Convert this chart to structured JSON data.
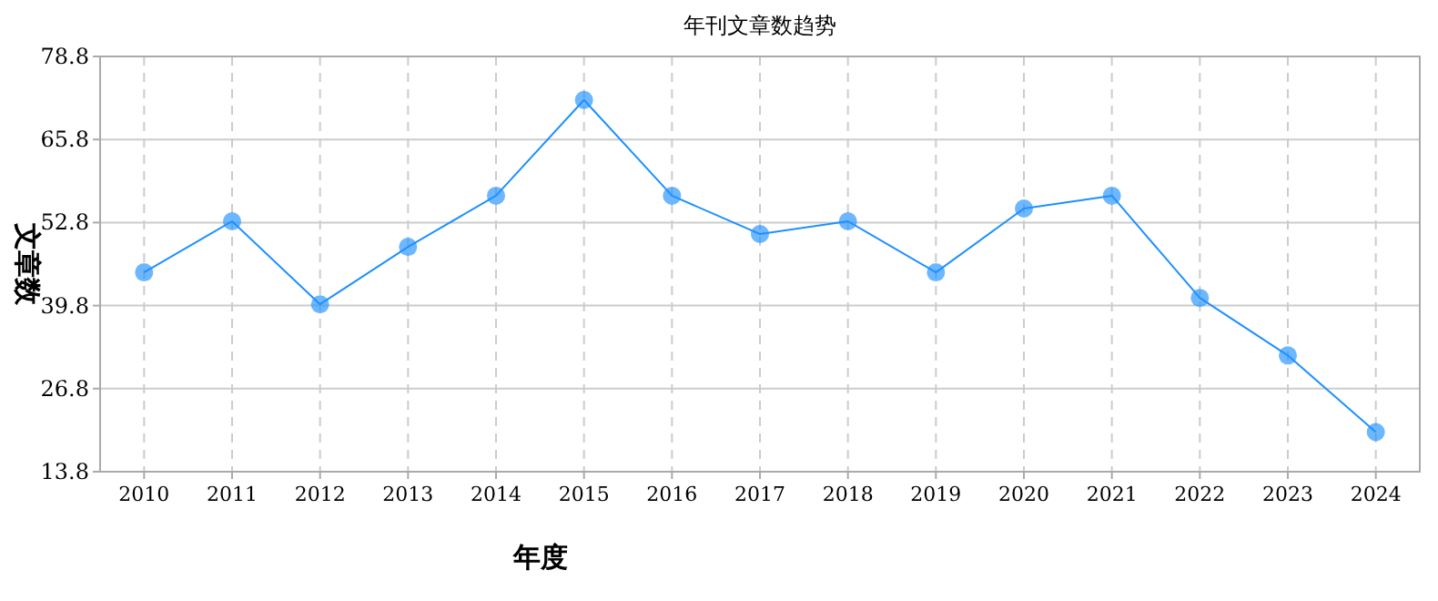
{
  "chart_data": {
    "type": "line",
    "title": "年刊文章数趋势",
    "xlabel": "年度",
    "ylabel": "文章数",
    "categories": [
      "2010",
      "2011",
      "2012",
      "2013",
      "2014",
      "2015",
      "2016",
      "2017",
      "2018",
      "2019",
      "2020",
      "2021",
      "2022",
      "2023",
      "2024"
    ],
    "series": [
      {
        "color": "#1e90ff",
        "values": [
          45,
          53,
          40,
          49,
          57,
          72,
          57,
          51,
          53,
          45,
          55,
          57,
          41,
          32,
          20
        ]
      }
    ],
    "ylim": [
      13.8,
      78.8
    ],
    "yticks": [
      13.8,
      26.8,
      39.8,
      52.8,
      65.8,
      78.8
    ],
    "grid": true,
    "marker": "circle"
  }
}
